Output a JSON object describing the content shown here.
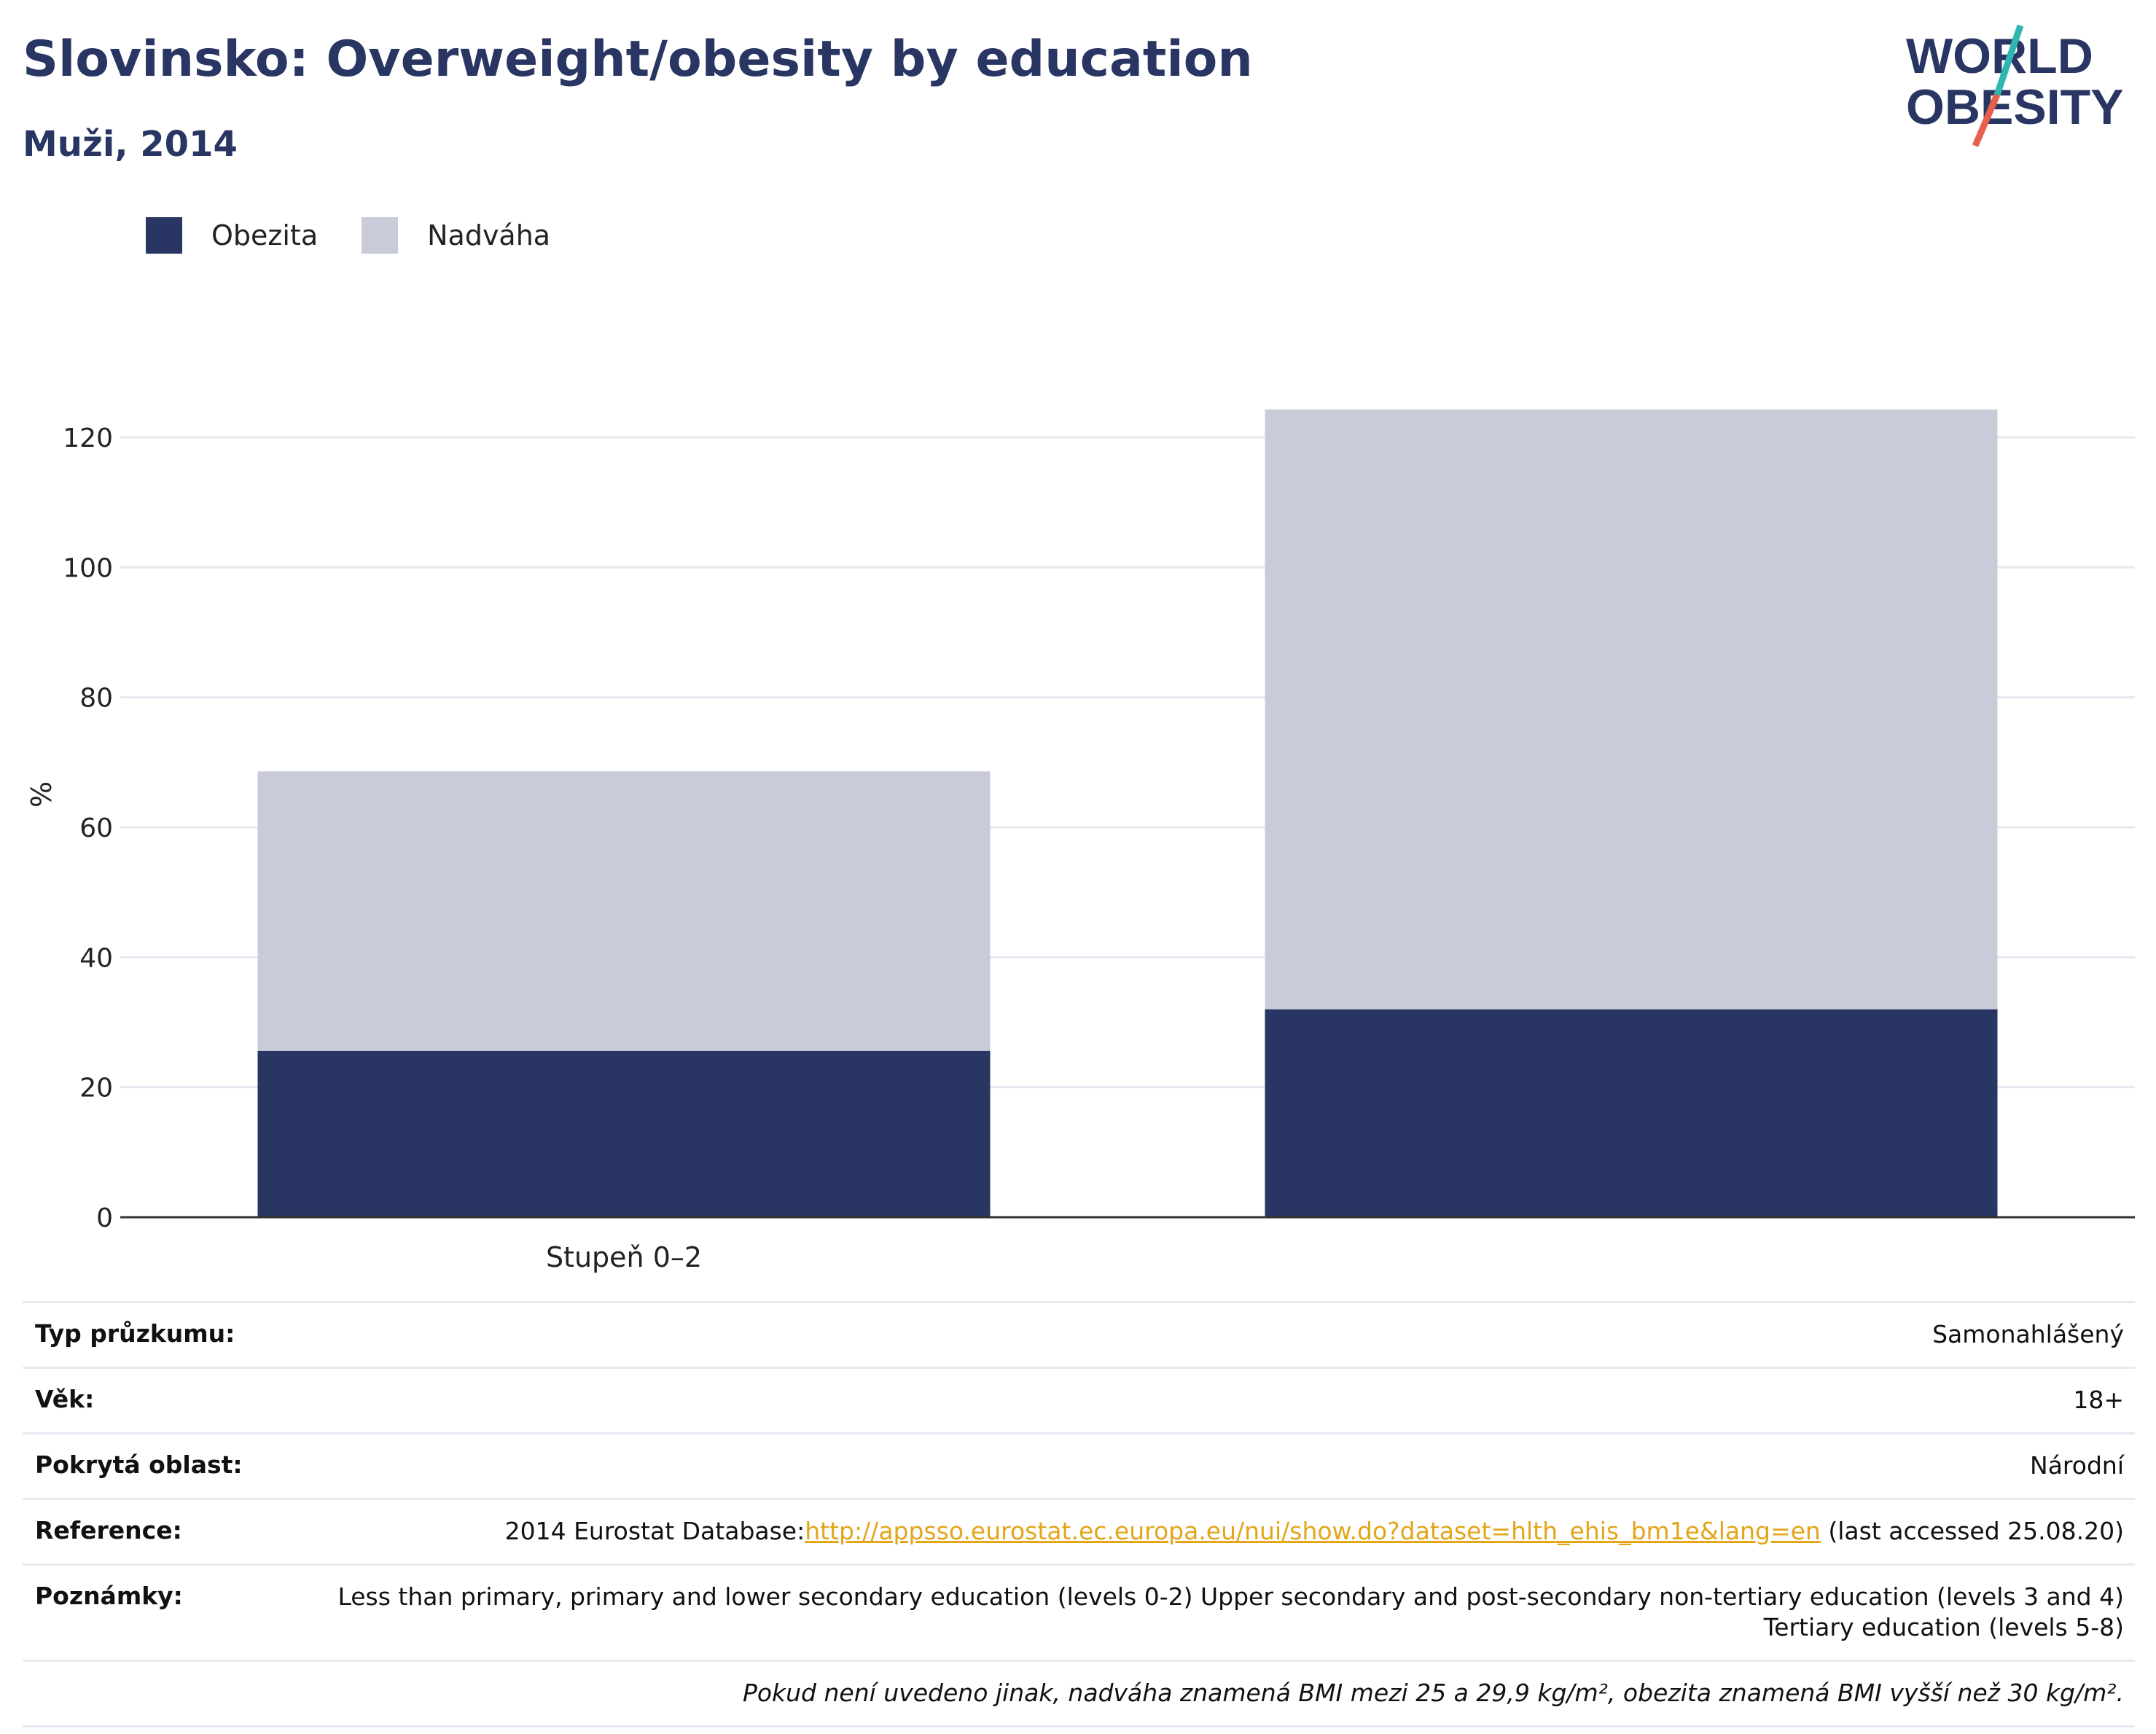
{
  "header": {
    "title": "Slovinsko: Overweight/obesity by education",
    "subtitle": "Muži, 2014"
  },
  "logo": {
    "line1": "WORLD",
    "line2": "OBESITY"
  },
  "colors": {
    "obesity": "#293562",
    "overweight": "#c9ccd8",
    "title": "#293562",
    "link": "#e3a51a",
    "logo_teal": "#2fb6b0",
    "logo_red": "#e8604c"
  },
  "chart_data": {
    "type": "bar",
    "stacked": true,
    "categories": [
      "Stupeň 0–2",
      ""
    ],
    "series": [
      {
        "name": "Obezita",
        "values": [
          25.6,
          32.0
        ]
      },
      {
        "name": "Nadváha",
        "values": [
          43.0,
          92.3
        ]
      }
    ],
    "ylabel": "%",
    "ylim": [
      0,
      125
    ],
    "yticks": [
      0,
      20,
      40,
      60,
      80,
      100,
      120
    ],
    "grid": true,
    "legend_position": "top-left"
  },
  "info": {
    "survey_type": {
      "label": "Typ průzkumu:",
      "value": "Samonahlášený"
    },
    "age": {
      "label": "Věk:",
      "value": "18+"
    },
    "area": {
      "label": "Pokrytá oblast:",
      "value": "Národní"
    },
    "reference": {
      "label": "Reference:",
      "prefix": "2014 Eurostat Database:",
      "link": "http://appsso.eurostat.ec.europa.eu/nui/show.do?dataset=hlth_ehis_bm1e&lang=en",
      "suffix": " (last accessed 25.08.20)"
    },
    "notes": {
      "label": "Poznámky:",
      "value": "Less than primary, primary and lower secondary education (levels 0-2) Upper secondary and post-secondary non-tertiary education (levels 3 and 4) Tertiary education (levels 5-8)"
    },
    "footnote": "Pokud není uvedeno jinak, nadváha znamená BMI mezi 25 a 29,9 kg/m², obezita znamená BMI vyšší než 30 kg/m²."
  }
}
